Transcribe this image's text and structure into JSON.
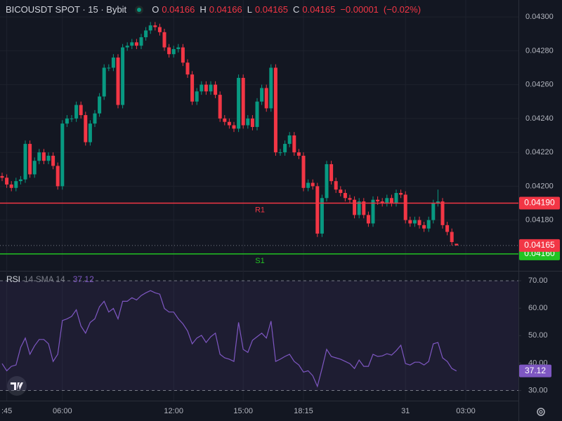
{
  "chart_data": [
    {
      "type": "candlestick",
      "title": "BICOUSDT SPOT · 15 · Bybit",
      "ohlc_labels": [
        "O",
        "H",
        "L",
        "C"
      ],
      "change": {
        "value": -1e-05,
        "label": "−0.00001"
      },
      "change_pct": {
        "value": -0.02,
        "label": "(−0.02%)"
      },
      "categories": [
        null,
        ":45",
        null,
        null,
        null,
        null,
        null,
        null,
        null,
        null,
        null,
        null,
        null,
        "06:00",
        null,
        null,
        null,
        null,
        null,
        null,
        null,
        null,
        null,
        null,
        null,
        null,
        null,
        null,
        null,
        null,
        null,
        null,
        null,
        null,
        null,
        null,
        null,
        "12:00",
        null,
        null,
        null,
        null,
        null,
        null,
        null,
        null,
        null,
        null,
        null,
        null,
        null,
        null,
        "15:00",
        null,
        null,
        null,
        null,
        null,
        null,
        null,
        null,
        null,
        null,
        null,
        null,
        "18:15",
        null,
        null,
        null,
        null,
        null,
        null,
        null,
        null,
        null,
        null,
        null,
        null,
        null,
        null,
        null,
        null,
        null,
        null,
        null,
        null,
        null,
        "31",
        null,
        null,
        null,
        null,
        null,
        null,
        null,
        null,
        null,
        null,
        null,
        null,
        "03:00"
      ],
      "open": [
        0.04206,
        0.04205,
        0.04201,
        0.04199,
        0.04203,
        0.04204,
        0.04225,
        0.04207,
        0.04215,
        0.0422,
        0.04215,
        0.04218,
        0.04212,
        0.042,
        0.04237,
        0.0424,
        0.0424,
        0.04248,
        0.04242,
        0.04226,
        0.04237,
        0.04243,
        0.04253,
        0.0427,
        0.0427,
        0.04276,
        0.04248,
        0.04282,
        0.04283,
        0.04285,
        0.04283,
        0.04288,
        0.04292,
        0.04295,
        0.04294,
        0.04291,
        0.04282,
        0.04278,
        0.04281,
        0.04282,
        0.04273,
        0.04266,
        0.0425,
        0.04256,
        0.0426,
        0.04256,
        0.0426,
        0.04254,
        0.0424,
        0.04238,
        0.04236,
        0.04234,
        0.04264,
        0.04236,
        0.0424,
        0.04235,
        0.0425,
        0.04258,
        0.04246,
        0.0427,
        0.0422,
        0.0422,
        0.04225,
        0.0423,
        0.0422,
        0.04218,
        0.04199,
        0.04202,
        0.042,
        0.04172,
        0.04193,
        0.04213,
        0.04203,
        0.04198,
        0.04196,
        0.04193,
        0.04192,
        0.04183,
        0.04191,
        0.04183,
        0.04178,
        0.04192,
        0.04191,
        0.0419,
        0.04193,
        0.0419,
        0.04196,
        0.04195,
        0.0418,
        0.04178,
        0.0418,
        0.04177,
        0.04175,
        0.0418,
        0.0419,
        0.04191,
        0.04177,
        0.04173,
        0.04166,
        null,
        null
      ],
      "high": [
        0.04208,
        0.04207,
        0.04203,
        0.04205,
        0.04206,
        0.04227,
        0.04227,
        0.04217,
        0.04222,
        0.04222,
        0.0422,
        0.0422,
        0.04214,
        0.04239,
        0.04242,
        0.04242,
        0.0425,
        0.0425,
        0.04244,
        0.04239,
        0.04245,
        0.04255,
        0.04272,
        0.04272,
        0.04278,
        0.04278,
        0.04284,
        0.04285,
        0.04287,
        0.04287,
        0.0429,
        0.04294,
        0.04297,
        0.04297,
        0.04296,
        0.04293,
        0.04284,
        0.04283,
        0.04284,
        0.04284,
        0.04275,
        0.04268,
        0.04258,
        0.04262,
        0.04262,
        0.04262,
        0.04262,
        0.04256,
        0.04242,
        0.0424,
        0.04238,
        0.04266,
        0.04266,
        0.04242,
        0.04242,
        0.04252,
        0.0426,
        0.0426,
        0.04272,
        0.04272,
        0.04222,
        0.04227,
        0.04232,
        0.04232,
        0.04222,
        0.0422,
        0.04204,
        0.04204,
        0.04202,
        0.04195,
        0.04215,
        0.04215,
        0.04205,
        0.042,
        0.04198,
        0.04195,
        0.04194,
        0.04193,
        0.04193,
        0.04185,
        0.04194,
        0.04194,
        0.04193,
        0.04195,
        0.04195,
        0.04198,
        0.04198,
        0.04197,
        0.04182,
        0.04182,
        0.04182,
        0.04179,
        0.04182,
        0.04192,
        0.04198,
        0.04193,
        0.04179,
        0.04175,
        0.04166,
        null,
        null
      ],
      "low": [
        0.04203,
        0.04199,
        0.04197,
        0.04197,
        0.04201,
        0.04202,
        0.04205,
        0.04205,
        0.04213,
        0.04213,
        0.04213,
        0.0421,
        0.04198,
        0.04198,
        0.04235,
        0.04238,
        0.04238,
        0.0424,
        0.04224,
        0.04224,
        0.04235,
        0.04241,
        0.04251,
        0.04268,
        0.04268,
        0.04246,
        0.04246,
        0.0428,
        0.04281,
        0.04281,
        0.04281,
        0.04286,
        0.0429,
        0.04292,
        0.04289,
        0.0428,
        0.04276,
        0.04276,
        0.04279,
        0.04271,
        0.04264,
        0.04248,
        0.04248,
        0.04254,
        0.04254,
        0.04254,
        0.04252,
        0.04238,
        0.04236,
        0.04234,
        0.04232,
        0.04232,
        0.04234,
        0.04234,
        0.04233,
        0.04233,
        0.04248,
        0.04244,
        0.04244,
        0.04218,
        0.04218,
        0.04218,
        0.04223,
        0.04218,
        0.04216,
        0.04197,
        0.04197,
        0.04198,
        0.0417,
        0.0417,
        0.04191,
        0.04201,
        0.04196,
        0.04194,
        0.04191,
        0.0419,
        0.04181,
        0.04181,
        0.04181,
        0.04176,
        0.04176,
        0.04189,
        0.04188,
        0.04188,
        0.04188,
        0.04188,
        0.04193,
        0.04178,
        0.04176,
        0.04176,
        0.04175,
        0.04173,
        0.04173,
        0.04178,
        0.04188,
        0.04175,
        0.04171,
        0.04165,
        0.04165,
        null,
        null
      ],
      "close": [
        0.04205,
        0.04201,
        0.04199,
        0.04203,
        0.04204,
        0.04225,
        0.04207,
        0.04215,
        0.0422,
        0.04215,
        0.04218,
        0.04212,
        0.042,
        0.04237,
        0.0424,
        0.0424,
        0.04248,
        0.04242,
        0.04226,
        0.04237,
        0.04243,
        0.04253,
        0.0427,
        0.0427,
        0.04276,
        0.04248,
        0.04282,
        0.04283,
        0.04285,
        0.04283,
        0.04288,
        0.04292,
        0.04295,
        0.04294,
        0.04291,
        0.04282,
        0.04278,
        0.04281,
        0.04282,
        0.04273,
        0.04266,
        0.0425,
        0.04256,
        0.0426,
        0.04256,
        0.0426,
        0.04254,
        0.0424,
        0.04238,
        0.04236,
        0.04234,
        0.04264,
        0.04236,
        0.0424,
        0.04235,
        0.0425,
        0.04258,
        0.04246,
        0.0427,
        0.0422,
        0.0422,
        0.04225,
        0.0423,
        0.0422,
        0.04218,
        0.04199,
        0.04202,
        0.042,
        0.04172,
        0.04193,
        0.04213,
        0.04203,
        0.04198,
        0.04196,
        0.04193,
        0.04192,
        0.04183,
        0.04191,
        0.04183,
        0.04178,
        0.04192,
        0.04191,
        0.0419,
        0.04193,
        0.0419,
        0.04196,
        0.04195,
        0.0418,
        0.04178,
        0.0418,
        0.04177,
        0.04175,
        0.0418,
        0.0419,
        0.04191,
        0.04177,
        0.04173,
        0.04167,
        0.04165,
        null,
        null
      ],
      "up_color": "#089981",
      "down_color": "#f23645",
      "ylim": [
        0.0415,
        0.0431
      ],
      "yticks": [
        {
          "value": 0.043,
          "label": "0.04300"
        },
        {
          "value": 0.0428,
          "label": "0.04280"
        },
        {
          "value": 0.0426,
          "label": "0.04260"
        },
        {
          "value": 0.0424,
          "label": "0.04240"
        },
        {
          "value": 0.0422,
          "label": "0.04220"
        },
        {
          "value": 0.042,
          "label": "0.04200"
        },
        {
          "value": 0.0418,
          "label": "0.04180"
        }
      ],
      "levels": [
        {
          "name": "R1",
          "value": 0.0419,
          "label": "0.04190",
          "color": "#f23645"
        },
        {
          "name": "S1",
          "value": 0.0416,
          "label": "0.04160",
          "color": "#22c322"
        }
      ],
      "grid": true
    },
    {
      "type": "line",
      "title": "RSI",
      "subtitle": "14 SMA 14",
      "values": [
        39.8,
        37.2,
        38.8,
        39.3,
        45.7,
        49.1,
        43.2,
        46.3,
        48.6,
        48.6,
        47.0,
        40.6,
        43.2,
        55.5,
        56.1,
        57.0,
        59.4,
        53.5,
        50.9,
        54.8,
        56.1,
        60.5,
        62.5,
        58.6,
        59.9,
        56.1,
        62.5,
        62.5,
        63.8,
        63.0,
        64.6,
        65.6,
        66.4,
        65.6,
        65.1,
        59.9,
        58.6,
        58.6,
        56.1,
        54.3,
        51.7,
        47.0,
        49.1,
        50.1,
        47.5,
        49.6,
        50.9,
        43.2,
        41.9,
        41.4,
        40.6,
        54.8,
        45.0,
        43.9,
        48.3,
        49.6,
        50.9,
        49.1,
        55.3,
        40.6,
        41.4,
        42.4,
        43.2,
        40.6,
        39.3,
        36.7,
        37.2,
        35.4,
        31.5,
        38.0,
        45.0,
        42.4,
        41.9,
        41.4,
        40.6,
        39.8,
        38.0,
        41.1,
        38.8,
        38.8,
        43.2,
        42.4,
        42.6,
        43.4,
        42.9,
        44.5,
        46.5,
        39.8,
        39.3,
        40.3,
        40.3,
        39.3,
        40.6,
        47.0,
        47.5,
        41.9,
        40.6,
        38.0,
        37.12,
        null,
        null
      ],
      "color": "#7e57c2",
      "band": [
        30,
        70
      ],
      "ylim": [
        26.3,
        73.6
      ],
      "yticks": [
        {
          "value": 70,
          "label": "70.00"
        },
        {
          "value": 60,
          "label": "60.00"
        },
        {
          "value": 50,
          "label": "50.00"
        },
        {
          "value": 40,
          "label": "40.00"
        },
        {
          "value": 30,
          "label": "30.00"
        }
      ]
    }
  ]
}
